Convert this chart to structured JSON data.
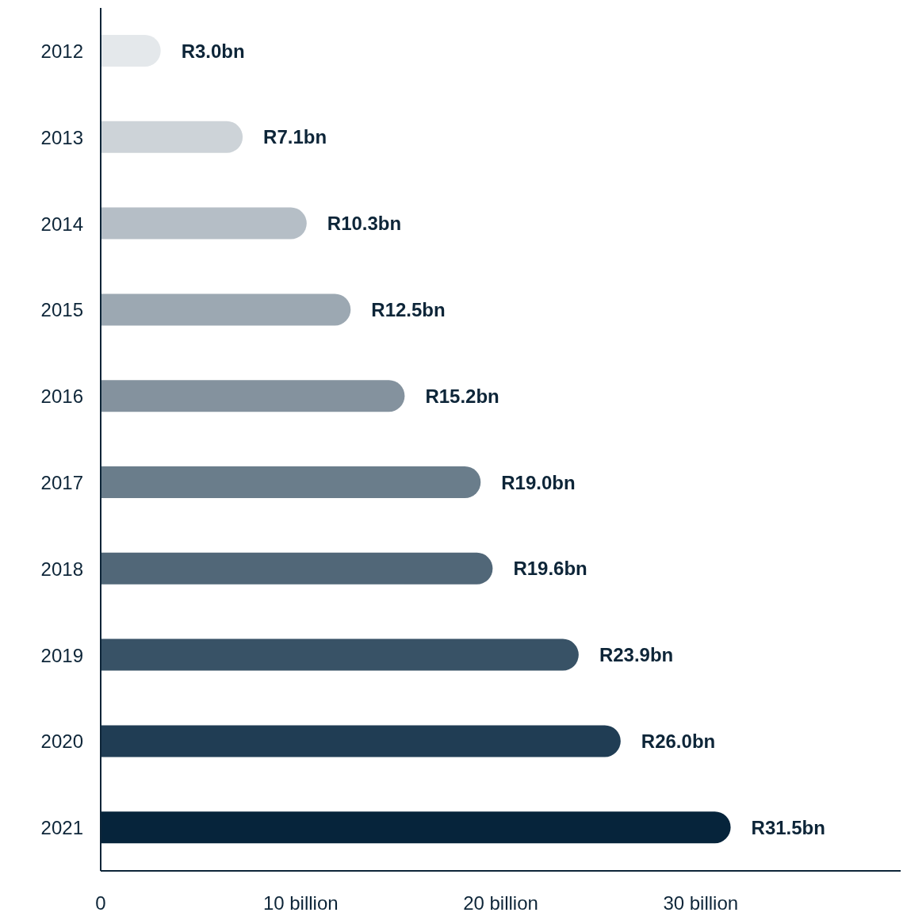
{
  "chart_data": {
    "type": "bar",
    "orientation": "horizontal",
    "categories": [
      "2012",
      "2013",
      "2014",
      "2015",
      "2016",
      "2017",
      "2018",
      "2019",
      "2020",
      "2021"
    ],
    "values": [
      3.0,
      7.1,
      10.3,
      12.5,
      15.2,
      19.0,
      19.6,
      23.9,
      26.0,
      31.5
    ],
    "colors": [
      "#e4e8eb",
      "#cdd3d8",
      "#b5bec6",
      "#9ca8b2",
      "#84929e",
      "#6a7d8b",
      "#516778",
      "#385266",
      "#203d54",
      "#06243b"
    ],
    "value_labels": [
      "R3.0bn",
      "R7.1bn",
      "R10.3bn",
      "R12.5bn",
      "R15.2bn",
      "R19.0bn",
      "R19.6bn",
      "R23.9bn",
      "R26.0bn",
      "R31.5bn"
    ],
    "xlim": [
      0,
      40
    ],
    "xticks": [
      0,
      {
        "value": 10,
        "label": "10 billion"
      },
      {
        "value": 20,
        "label": "20 billion"
      },
      {
        "value": 30,
        "label": "30 billion"
      }
    ],
    "grid": false
  }
}
